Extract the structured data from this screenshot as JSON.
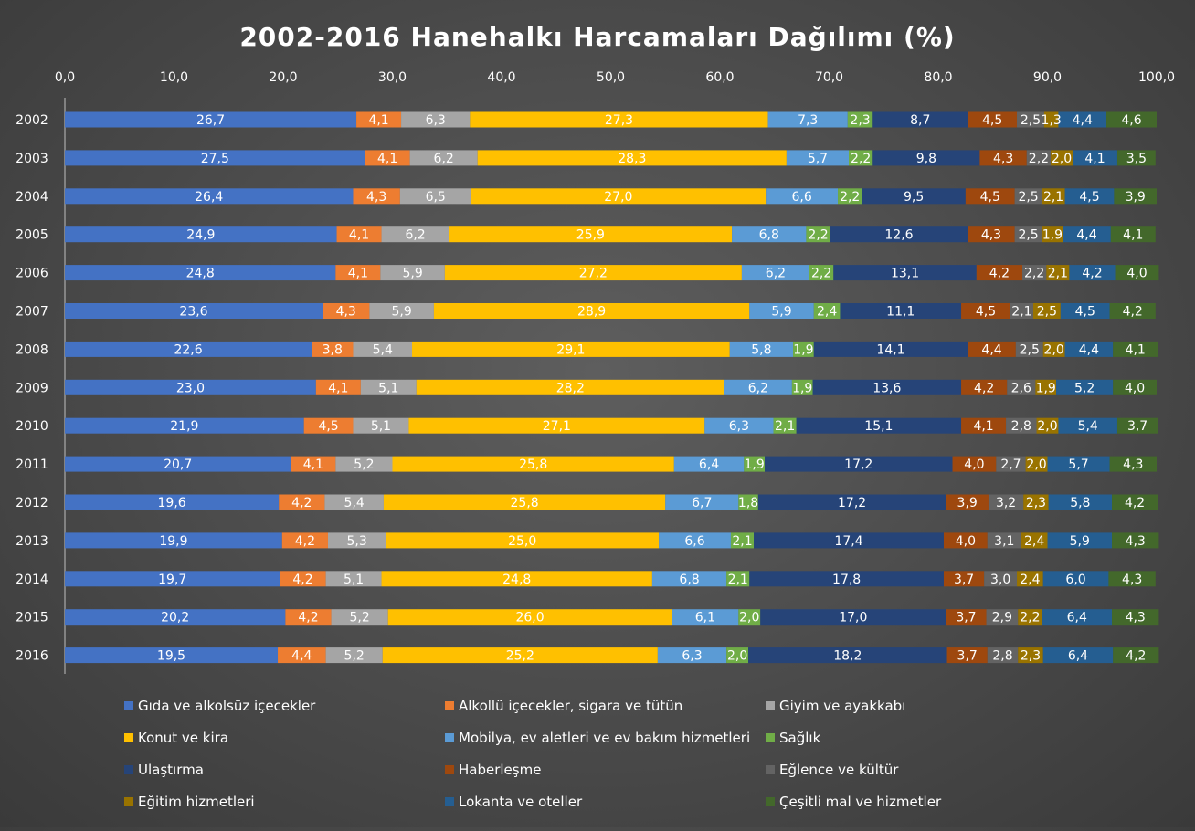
{
  "chart_data": {
    "type": "bar",
    "orientation": "horizontal",
    "stacked": true,
    "title": "2002-2016 Hanehalkı Harcamaları Dağılımı (%)",
    "xlim": [
      0,
      100
    ],
    "x_ticks": [
      "0,0",
      "10,0",
      "20,0",
      "30,0",
      "40,0",
      "50,0",
      "60,0",
      "70,0",
      "80,0",
      "90,0",
      "100,0"
    ],
    "x_axis_position": "top",
    "grid": false,
    "legend_position": "bottom",
    "categories": [
      "2002",
      "2003",
      "2004",
      "2005",
      "2006",
      "2007",
      "2008",
      "2009",
      "2010",
      "2011",
      "2012",
      "2013",
      "2014",
      "2015",
      "2016"
    ],
    "series": [
      {
        "name": "Gıda ve alkolsüz içecekler",
        "color": "#4472C4",
        "label_color": "#ffffff",
        "labels": [
          "26,7",
          "27,5",
          "26,4",
          "24,9",
          "24,8",
          "23,6",
          "22,6",
          "23,0",
          "21,9",
          "20,7",
          "19,6",
          "19,9",
          "19,7",
          "20,2",
          "19,5"
        ],
        "values": [
          26.7,
          27.5,
          26.4,
          24.9,
          24.8,
          23.6,
          22.6,
          23.0,
          21.9,
          20.7,
          19.6,
          19.9,
          19.7,
          20.2,
          19.5
        ]
      },
      {
        "name": "Alkollü içecekler, sigara ve tütün",
        "color": "#ED7D31",
        "label_color": "#ffffff",
        "labels": [
          "4,1",
          "4,1",
          "4,3",
          "4,1",
          "4,1",
          "4,3",
          "3,8",
          "4,1",
          "4,5",
          "4,1",
          "4,2",
          "4,2",
          "4,2",
          "4,2",
          "4,4"
        ],
        "values": [
          4.1,
          4.1,
          4.3,
          4.1,
          4.1,
          4.3,
          3.8,
          4.1,
          4.5,
          4.1,
          4.2,
          4.2,
          4.2,
          4.2,
          4.4
        ]
      },
      {
        "name": "Giyim ve ayakkabı",
        "color": "#A5A5A5",
        "label_color": "#ffffff",
        "labels": [
          "6,3",
          "6,2",
          "6,5",
          "6,2",
          "5,9",
          "5,9",
          "5,4",
          "5,1",
          "5,1",
          "5,2",
          "5,4",
          "5,3",
          "5,1",
          "5,2",
          "5,2"
        ],
        "values": [
          6.3,
          6.2,
          6.5,
          6.2,
          5.9,
          5.9,
          5.4,
          5.1,
          5.1,
          5.2,
          5.4,
          5.3,
          5.1,
          5.2,
          5.2
        ]
      },
      {
        "name": "Konut ve kira",
        "color": "#FFC000",
        "label_color": "#ffffff",
        "labels": [
          "27,3",
          "28,3",
          "27,0",
          "25,9",
          "27,2",
          "28,9",
          "29,1",
          "28,2",
          "27,1",
          "25,8",
          "25,8",
          "25,0",
          "24,8",
          "26,0",
          "25,2"
        ],
        "values": [
          27.3,
          28.3,
          27.0,
          25.9,
          27.2,
          28.9,
          29.1,
          28.2,
          27.1,
          25.8,
          25.8,
          25.0,
          24.8,
          26.0,
          25.2
        ]
      },
      {
        "name": "Mobilya, ev aletleri ve ev bakım hizmetleri",
        "color": "#5B9BD5",
        "label_color": "#ffffff",
        "labels": [
          "7,3",
          "5,7",
          "6,6",
          "6,8",
          "6,2",
          "5,9",
          "5,8",
          "6,2",
          "6,3",
          "6,4",
          "6,7",
          "6,6",
          "6,8",
          "6,1",
          "6,3"
        ],
        "values": [
          7.3,
          5.7,
          6.6,
          6.8,
          6.2,
          5.9,
          5.8,
          6.2,
          6.3,
          6.4,
          6.7,
          6.6,
          6.8,
          6.1,
          6.3
        ]
      },
      {
        "name": "Sağlık",
        "color": "#70AD47",
        "label_color": "#ffffff",
        "labels": [
          "2,3",
          "2,2",
          "2,2",
          "2,2",
          "2,2",
          "2,4",
          "1,9",
          "1,9",
          "2,1",
          "1,9",
          "1,8",
          "2,1",
          "2,1",
          "2,0",
          "2,0"
        ],
        "values": [
          2.3,
          2.2,
          2.2,
          2.2,
          2.2,
          2.4,
          1.9,
          1.9,
          2.1,
          1.9,
          1.8,
          2.1,
          2.1,
          2.0,
          2.0
        ]
      },
      {
        "name": "Ulaştırma",
        "color": "#264478",
        "label_color": "#ffffff",
        "labels": [
          "8,7",
          "9,8",
          "9,5",
          "12,6",
          "13,1",
          "11,1",
          "14,1",
          "13,6",
          "15,1",
          "17,2",
          "17,2",
          "17,4",
          "17,8",
          "17,0",
          "18,2"
        ],
        "values": [
          8.7,
          9.8,
          9.5,
          12.6,
          13.1,
          11.1,
          14.1,
          13.6,
          15.1,
          17.2,
          17.2,
          17.4,
          17.8,
          17.0,
          18.2
        ]
      },
      {
        "name": "Haberleşme",
        "color": "#9E480E",
        "label_color": "#ffffff",
        "labels": [
          "4,5",
          "4,3",
          "4,5",
          "4,3",
          "4,2",
          "4,5",
          "4,4",
          "4,2",
          "4,1",
          "4,0",
          "3,9",
          "4,0",
          "3,7",
          "3,7",
          "3,7"
        ],
        "values": [
          4.5,
          4.3,
          4.5,
          4.3,
          4.2,
          4.5,
          4.4,
          4.2,
          4.1,
          4.0,
          3.9,
          4.0,
          3.7,
          3.7,
          3.7
        ]
      },
      {
        "name": "Eğlence ve kültür",
        "color": "#636363",
        "label_color": "#ffffff",
        "labels": [
          "2,5",
          "2,2",
          "2,5",
          "2,5",
          "2,2",
          "2,1",
          "2,5",
          "2,6",
          "2,8",
          "2,7",
          "3,2",
          "3,1",
          "3,0",
          "2,9",
          "2,8"
        ],
        "values": [
          2.5,
          2.2,
          2.5,
          2.5,
          2.2,
          2.1,
          2.5,
          2.6,
          2.8,
          2.7,
          3.2,
          3.1,
          3.0,
          2.9,
          2.8
        ]
      },
      {
        "name": "Eğitim hizmetleri",
        "color": "#997300",
        "label_color": "#ffffff",
        "labels": [
          "1,3",
          "2,0",
          "2,1",
          "1,9",
          "2,1",
          "2,5",
          "2,0",
          "1,9",
          "2,0",
          "2,0",
          "2,3",
          "2,4",
          "2,4",
          "2,2",
          "2,3"
        ],
        "values": [
          1.3,
          2.0,
          2.1,
          1.9,
          2.1,
          2.5,
          2.0,
          1.9,
          2.0,
          2.0,
          2.3,
          2.4,
          2.4,
          2.2,
          2.3
        ]
      },
      {
        "name": "Lokanta ve oteller",
        "color": "#255E91",
        "label_color": "#ffffff",
        "labels": [
          "4,4",
          "4,1",
          "4,5",
          "4,4",
          "4,2",
          "4,5",
          "4,4",
          "5,2",
          "5,4",
          "5,7",
          "5,8",
          "5,9",
          "6,0",
          "6,4",
          "6,4"
        ],
        "values": [
          4.4,
          4.1,
          4.5,
          4.4,
          4.2,
          4.5,
          4.4,
          5.2,
          5.4,
          5.7,
          5.8,
          5.9,
          6.0,
          6.4,
          6.4
        ]
      },
      {
        "name": "Çeşitli mal ve hizmetler",
        "color": "#43682B",
        "label_color": "#ffffff",
        "labels": [
          "4,6",
          "3,5",
          "3,9",
          "4,1",
          "4,0",
          "4,2",
          "4,1",
          "4,0",
          "3,7",
          "4,3",
          "4,2",
          "4,3",
          "4,3",
          "4,3",
          "4,2"
        ],
        "values": [
          4.6,
          3.5,
          3.9,
          4.1,
          4.0,
          4.2,
          4.1,
          4.0,
          3.7,
          4.3,
          4.2,
          4.3,
          4.3,
          4.3,
          4.2
        ]
      }
    ]
  }
}
